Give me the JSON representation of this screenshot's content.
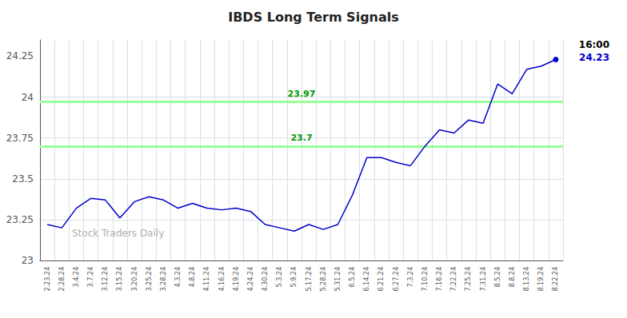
{
  "chart_data": {
    "type": "line",
    "title": "IBDS Long Term Signals",
    "categories": [
      "2.23.24",
      "2.28.24",
      "3.4.24",
      "3.7.24",
      "3.12.24",
      "3.15.24",
      "3.20.24",
      "3.25.24",
      "3.28.24",
      "4.3.24",
      "4.8.24",
      "4.11.24",
      "4.16.24",
      "4.19.24",
      "4.24.24",
      "4.30.24",
      "5.3.24",
      "5.9.24",
      "5.17.24",
      "5.28.24",
      "5.31.24",
      "6.5.24",
      "6.14.24",
      "6.21.24",
      "6.27.24",
      "7.3.24",
      "7.10.24",
      "7.16.24",
      "7.22.24",
      "7.25.24",
      "7.31.24",
      "8.5.24",
      "8.8.24",
      "8.13.24",
      "8.19.24",
      "8.22.24"
    ],
    "values": [
      23.22,
      23.2,
      23.32,
      23.38,
      23.37,
      23.26,
      23.36,
      23.39,
      23.37,
      23.32,
      23.35,
      23.32,
      23.31,
      23.32,
      23.3,
      23.22,
      23.2,
      23.18,
      23.22,
      23.19,
      23.22,
      23.4,
      23.63,
      23.63,
      23.6,
      23.58,
      23.7,
      23.8,
      23.78,
      23.86,
      23.84,
      24.08,
      24.02,
      24.17,
      24.19,
      24.23
    ],
    "color": "#0000cc",
    "ylim": [
      23,
      24.35
    ],
    "yticks": [
      23,
      23.25,
      23.5,
      23.75,
      24,
      24.25
    ],
    "grid": true,
    "hlines": [
      {
        "value": 23.97,
        "label": "23.97"
      },
      {
        "value": 23.7,
        "label": "23.7"
      }
    ],
    "hline_color": "#99ff99",
    "hline_label_color": "#009900",
    "watermark": "Stock Traders Daily",
    "last_time": "16:00",
    "last_time_color": "#000000",
    "last_price": 24.23,
    "last_price_color": "#0000cc"
  }
}
